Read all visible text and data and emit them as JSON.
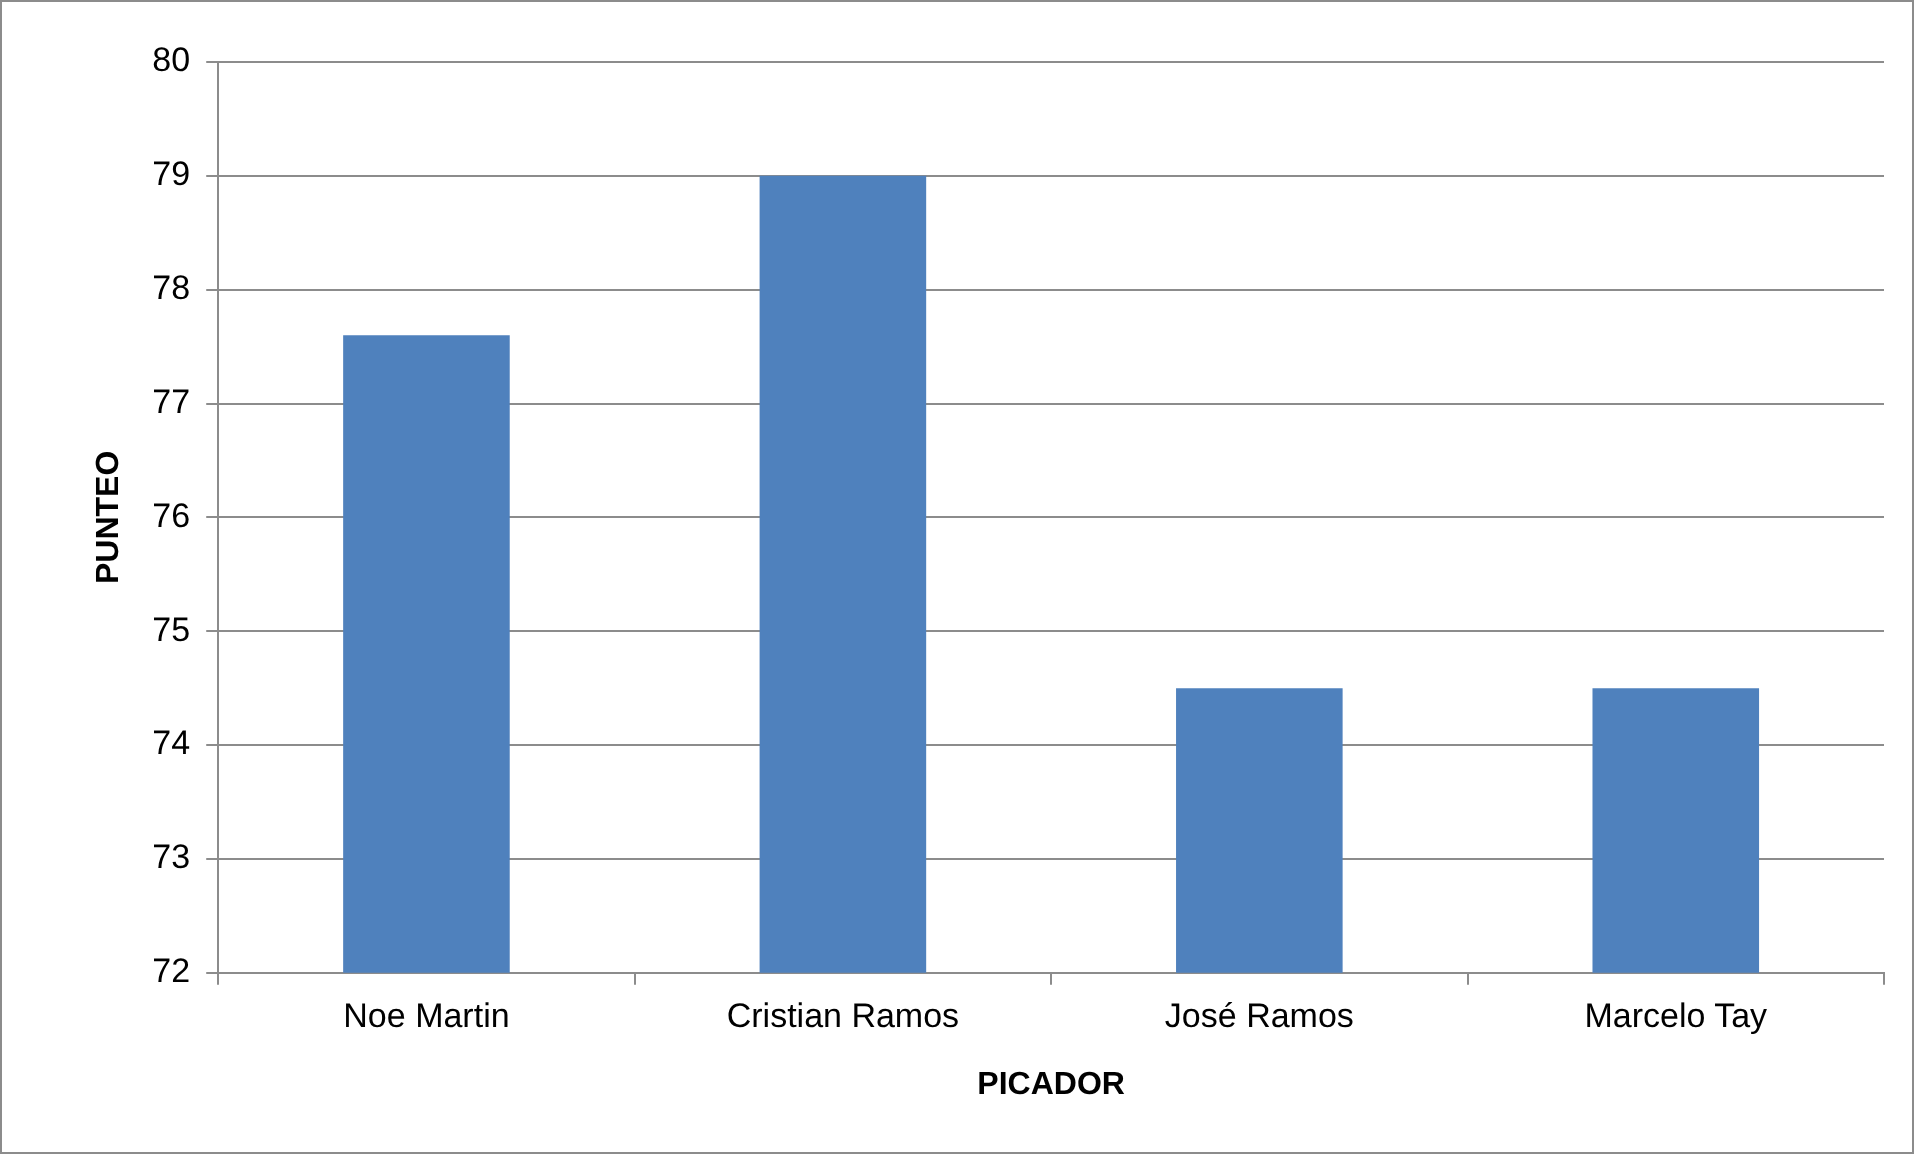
{
  "chart_data": {
    "type": "bar",
    "xlabel": "PICADOR",
    "ylabel": "PUNTEO",
    "categories": [
      "Noe Martin",
      "Cristian Ramos",
      "José Ramos",
      "Marcelo Tay"
    ],
    "values": [
      77.6,
      79,
      74.5,
      74.5
    ],
    "color": "#4f81bd",
    "ylim": [
      72,
      80
    ],
    "yticks": [
      72,
      73,
      74,
      75,
      76,
      77,
      78,
      79,
      80
    ],
    "grid": "y",
    "legend": false
  }
}
